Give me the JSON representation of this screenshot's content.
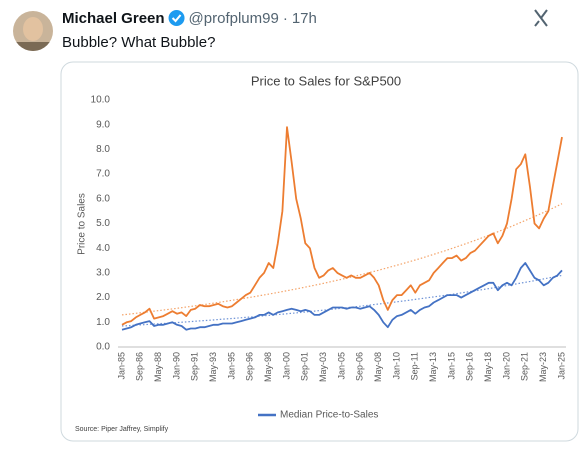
{
  "tweet": {
    "author": "Michael Green",
    "handle": "@profplum99",
    "separator": "·",
    "time": "17h",
    "text": "Bubble? What Bubble?"
  },
  "chart_data": {
    "type": "line",
    "title": "Price to Sales for S&P500",
    "ylabel": "Price to Sales",
    "source": "Source: Piper Jaffrey, Simplify",
    "categories": [
      "Jan-85",
      null,
      null,
      null,
      "Sep-86",
      null,
      null,
      null,
      "May-88",
      null,
      null,
      null,
      "Jan-90",
      null,
      null,
      null,
      "Sep-91",
      null,
      null,
      null,
      "May-93",
      null,
      null,
      null,
      "Jan-95",
      null,
      null,
      null,
      "Sep-96",
      null,
      null,
      null,
      "May-98",
      null,
      null,
      null,
      "Jan-00",
      null,
      null,
      null,
      "Sep-01",
      null,
      null,
      null,
      "May-03",
      null,
      null,
      null,
      "Jan-05",
      null,
      null,
      null,
      "Sep-06",
      null,
      null,
      null,
      "May-08",
      null,
      null,
      null,
      "Jan-10",
      null,
      null,
      null,
      "Sep-11",
      null,
      null,
      null,
      "May-13",
      null,
      null,
      null,
      "Jan-15",
      null,
      null,
      null,
      "Sep-16",
      null,
      null,
      null,
      "May-18",
      null,
      null,
      null,
      "Jan-20",
      null,
      null,
      null,
      "Sep-21",
      null,
      null,
      null,
      "May-23",
      null,
      null,
      null,
      "Jan-25"
    ],
    "series": [
      {
        "color": "#ed7d31",
        "values": [
          0.9,
          1.0,
          1.05,
          1.2,
          1.3,
          1.4,
          1.55,
          1.15,
          1.2,
          1.25,
          1.35,
          1.45,
          1.35,
          1.4,
          1.25,
          1.5,
          1.55,
          1.7,
          1.65,
          1.65,
          1.7,
          1.75,
          1.65,
          1.6,
          1.65,
          1.8,
          1.95,
          2.1,
          2.2,
          2.5,
          2.8,
          3.0,
          3.4,
          3.2,
          4.2,
          5.5,
          8.9,
          7.5,
          6.0,
          5.2,
          4.2,
          4.0,
          3.2,
          2.8,
          2.9,
          3.1,
          3.2,
          3.0,
          2.9,
          2.8,
          2.9,
          2.8,
          2.8,
          2.9,
          3.0,
          2.8,
          2.5,
          1.9,
          1.5,
          1.9,
          2.1,
          2.1,
          2.3,
          2.5,
          2.2,
          2.5,
          2.6,
          2.7,
          3.0,
          3.2,
          3.4,
          3.6,
          3.6,
          3.7,
          3.5,
          3.6,
          3.8,
          3.9,
          4.1,
          4.3,
          4.5,
          4.6,
          4.2,
          4.5,
          5.0,
          6.0,
          7.2,
          7.4,
          7.8,
          6.5,
          5.0,
          4.8,
          5.2,
          5.5,
          6.5,
          7.5,
          8.5
        ]
      },
      {
        "name": "Median Price-to-Sales",
        "color": "#4472c4",
        "values": [
          0.7,
          0.75,
          0.8,
          0.9,
          0.95,
          1.0,
          1.05,
          0.85,
          0.9,
          0.9,
          0.95,
          1.0,
          0.9,
          0.85,
          0.7,
          0.75,
          0.75,
          0.8,
          0.8,
          0.85,
          0.9,
          0.9,
          0.95,
          0.95,
          0.95,
          1.0,
          1.05,
          1.1,
          1.15,
          1.2,
          1.3,
          1.3,
          1.4,
          1.3,
          1.4,
          1.45,
          1.5,
          1.55,
          1.5,
          1.45,
          1.5,
          1.45,
          1.3,
          1.3,
          1.4,
          1.5,
          1.6,
          1.6,
          1.6,
          1.55,
          1.6,
          1.6,
          1.55,
          1.6,
          1.65,
          1.5,
          1.3,
          1.0,
          0.8,
          1.1,
          1.25,
          1.3,
          1.4,
          1.5,
          1.35,
          1.5,
          1.6,
          1.65,
          1.8,
          1.9,
          2.0,
          2.1,
          2.1,
          2.1,
          2.0,
          2.1,
          2.2,
          2.3,
          2.4,
          2.5,
          2.6,
          2.6,
          2.3,
          2.5,
          2.6,
          2.5,
          2.8,
          3.2,
          3.4,
          3.1,
          2.8,
          2.7,
          2.5,
          2.6,
          2.8,
          2.9,
          3.1
        ]
      }
    ],
    "trendlines": [
      {
        "color": "#f4a46a",
        "values": [
          1.3,
          5.8
        ]
      },
      {
        "color": "#6f93d6",
        "values": [
          0.85,
          2.9
        ]
      }
    ],
    "ylim": [
      0,
      10
    ],
    "yticks": [
      {
        "value": 0,
        "label": "0.0"
      },
      {
        "value": 1,
        "label": "1.0"
      },
      {
        "value": 2,
        "label": "2.0"
      },
      {
        "value": 3,
        "label": "3.0"
      },
      {
        "value": 4,
        "label": "4.0"
      },
      {
        "value": 5,
        "label": "5.0"
      },
      {
        "value": 6,
        "label": "6.0"
      },
      {
        "value": 7,
        "label": "7.0"
      },
      {
        "value": 8,
        "label": "8.0"
      },
      {
        "value": 9,
        "label": "9.0"
      },
      {
        "value": 10,
        "label": "10.0"
      }
    ],
    "grid": false,
    "legend": "bottom"
  }
}
